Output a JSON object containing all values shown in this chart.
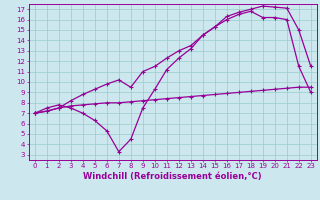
{
  "xlabel": "Windchill (Refroidissement éolien,°C)",
  "bg_color": "#cce8ee",
  "line_color": "#990099",
  "grid_color": "#99cccc",
  "xlim": [
    -0.5,
    23.5
  ],
  "ylim": [
    2.5,
    17.5
  ],
  "xticks": [
    0,
    1,
    2,
    3,
    4,
    5,
    6,
    7,
    8,
    9,
    10,
    11,
    12,
    13,
    14,
    15,
    16,
    17,
    18,
    19,
    20,
    21,
    22,
    23
  ],
  "yticks": [
    3,
    4,
    5,
    6,
    7,
    8,
    9,
    10,
    11,
    12,
    13,
    14,
    15,
    16,
    17
  ],
  "line1_x": [
    0,
    1,
    2,
    3,
    4,
    5,
    6,
    7,
    8,
    9,
    10,
    11,
    12,
    13,
    14,
    15,
    16,
    17,
    18,
    19,
    20,
    21,
    22,
    23
  ],
  "line1_y": [
    7.0,
    7.2,
    7.5,
    7.7,
    7.8,
    7.9,
    8.0,
    8.0,
    8.1,
    8.2,
    8.3,
    8.4,
    8.5,
    8.6,
    8.7,
    8.8,
    8.9,
    9.0,
    9.1,
    9.2,
    9.3,
    9.4,
    9.5,
    9.5
  ],
  "line2_x": [
    0,
    1,
    2,
    3,
    4,
    5,
    6,
    7,
    8,
    9,
    10,
    11,
    12,
    13,
    14,
    15,
    16,
    17,
    18,
    19,
    20,
    21,
    22,
    23
  ],
  "line2_y": [
    7.0,
    7.2,
    7.5,
    8.2,
    8.8,
    9.3,
    9.8,
    10.2,
    9.5,
    11.0,
    11.5,
    12.3,
    13.0,
    13.5,
    14.5,
    15.3,
    16.3,
    16.7,
    17.0,
    17.3,
    17.2,
    17.1,
    15.0,
    11.5
  ],
  "line3_x": [
    0,
    1,
    2,
    3,
    4,
    5,
    6,
    7,
    8,
    9,
    10,
    11,
    12,
    13,
    14,
    15,
    16,
    17,
    18,
    19,
    20,
    21,
    22,
    23
  ],
  "line3_y": [
    7.0,
    7.5,
    7.8,
    7.5,
    7.0,
    6.3,
    5.3,
    3.3,
    4.5,
    7.5,
    9.3,
    11.2,
    12.3,
    13.2,
    14.5,
    15.3,
    16.0,
    16.5,
    16.8,
    16.2,
    16.2,
    16.0,
    11.5,
    9.0
  ],
  "marker": "+",
  "markersize": 3.5,
  "linewidth": 0.9,
  "tick_fontsize": 5.0,
  "xlabel_fontsize": 6.0
}
